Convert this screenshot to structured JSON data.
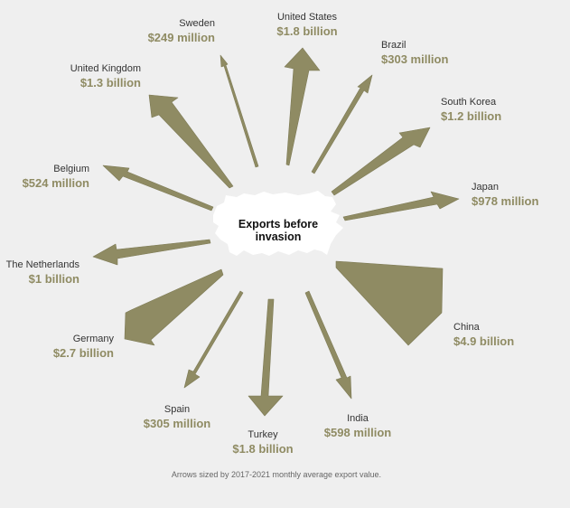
{
  "center_label_line1": "Exports before",
  "center_label_line2": "invasion",
  "footnote": "Arrows sized by 2017-2021 monthly average export value.",
  "colors": {
    "arrow": "#8f8b63",
    "arrow_stroke": "#7d7a55",
    "value_text": "#8f8b63",
    "map": "#ffffff",
    "background": "#efefef"
  },
  "map_icon": "russia-map-silhouette",
  "countries": [
    {
      "name": "United States",
      "value": "$1.8 billion"
    },
    {
      "name": "Brazil",
      "value": "$303 million"
    },
    {
      "name": "South Korea",
      "value": "$1.2 billion"
    },
    {
      "name": "Japan",
      "value": "$978 million"
    },
    {
      "name": "China",
      "value": "$4.9 billion"
    },
    {
      "name": "India",
      "value": "$598 million"
    },
    {
      "name": "Turkey",
      "value": "$1.8 billion"
    },
    {
      "name": "Spain",
      "value": "$305 million"
    },
    {
      "name": "Germany",
      "value": "$2.7 billion"
    },
    {
      "name": "The Netherlands",
      "value": "$1 billion"
    },
    {
      "name": "Belgium",
      "value": "$524 million"
    },
    {
      "name": "United Kingdom",
      "value": "$1.3 billion"
    },
    {
      "name": "Sweden",
      "value": "$249 million"
    }
  ]
}
